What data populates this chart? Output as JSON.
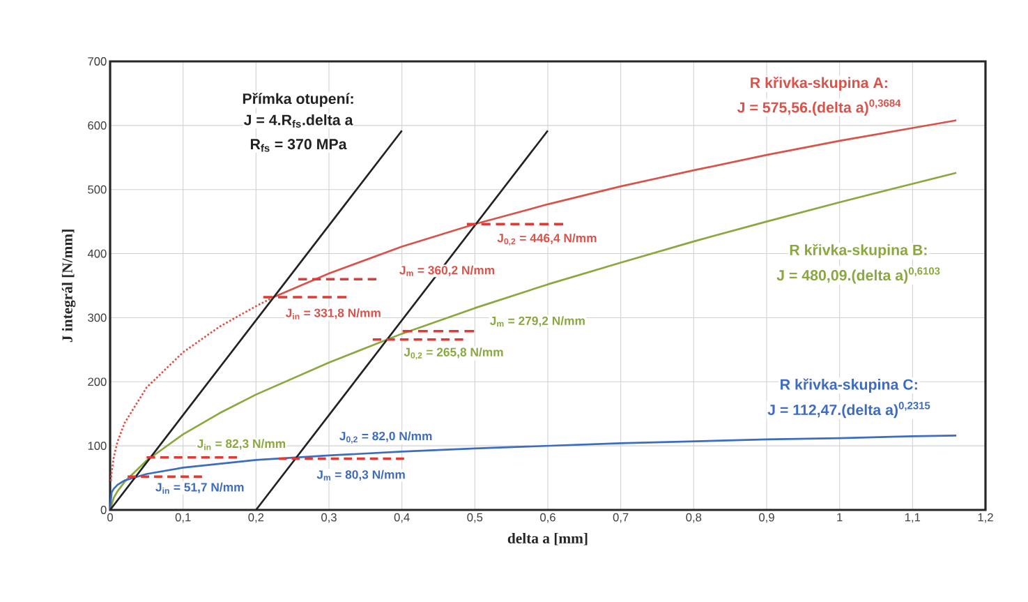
{
  "chart_data": {
    "type": "line",
    "xlabel": "delta a [mm]",
    "ylabel": "J integrál [N/mm]",
    "xlim": [
      0,
      1.2
    ],
    "ylim": [
      0,
      700
    ],
    "xticks": [
      0,
      {
        "value": 0.1,
        "label": "0,1"
      },
      {
        "value": 0.2,
        "label": "0,2"
      },
      {
        "value": 0.3,
        "label": "0,3"
      },
      {
        "value": 0.4,
        "label": "0,4"
      },
      {
        "value": 0.5,
        "label": "0,5"
      },
      {
        "value": 0.6,
        "label": "0,6"
      },
      {
        "value": 0.7,
        "label": "0,7"
      },
      {
        "value": 0.8,
        "label": "0,8"
      },
      {
        "value": 0.9,
        "label": "0,9"
      },
      1,
      {
        "value": 1.1,
        "label": "1,1"
      },
      {
        "value": 1.2,
        "label": "1,2"
      }
    ],
    "yticks": [
      0,
      100,
      200,
      300,
      400,
      500,
      600,
      700
    ],
    "grid": true,
    "series": [
      {
        "color": "#d9534a",
        "line_style": "dotted",
        "x": [
          0.001,
          0.002,
          0.005,
          0.01,
          0.02,
          0.05,
          0.1,
          0.15,
          0.2,
          0.224
        ],
        "values": [
          45,
          58,
          82,
          106,
          136,
          191,
          246,
          286,
          318,
          332
        ]
      },
      {
        "name": "R křivka-skupina A:",
        "color": "#d9534a",
        "line_style": "solid",
        "x": [
          0.224,
          0.3,
          0.4,
          0.5,
          0.6,
          0.7,
          0.8,
          0.9,
          1.0,
          1.1,
          1.16
        ],
        "values": [
          332,
          369,
          411,
          446,
          477,
          505,
          530,
          554,
          576,
          596,
          608
        ]
      },
      {
        "name": "R křivka-skupina B:",
        "color": "#8aa83e",
        "line_style": "solid",
        "x": [
          0,
          0.005,
          0.01,
          0.02,
          0.05,
          0.1,
          0.15,
          0.2,
          0.3,
          0.4,
          0.5,
          0.6,
          0.7,
          0.8,
          0.9,
          1.0,
          1.1,
          1.16
        ],
        "values": [
          0,
          19,
          29,
          44,
          77,
          118,
          151,
          180,
          230,
          275,
          315,
          352,
          386,
          419,
          450,
          480,
          509,
          526
        ]
      },
      {
        "name": "R křivka-skupina C:",
        "color": "#3d6cc0",
        "line_style": "solid",
        "x": [
          0,
          0.002,
          0.005,
          0.01,
          0.02,
          0.05,
          0.1,
          0.2,
          0.3,
          0.4,
          0.5,
          0.6,
          0.7,
          0.8,
          0.9,
          1.0,
          1.1,
          1.16
        ],
        "values": [
          0,
          27,
          33,
          39,
          46,
          56,
          66,
          78,
          85,
          91,
          96,
          100,
          104,
          107,
          110,
          112,
          115,
          116
        ]
      },
      {
        "name": "Přímka otupení:",
        "color": "#222222",
        "line_style": "solid",
        "x": [
          0,
          0.4
        ],
        "values": [
          0,
          592
        ]
      },
      {
        "color": "#222222",
        "line_style": "solid",
        "x": [
          0.2,
          0.6
        ],
        "values": [
          0,
          592
        ]
      },
      {
        "color": "#e03a36",
        "line_style": "dashed",
        "x": [
          0.489,
          0.621
        ],
        "values": [
          446,
          446
        ]
      },
      {
        "color": "#e03a36",
        "line_style": "dashed",
        "x": [
          0.258,
          0.365
        ],
        "values": [
          360,
          360
        ]
      },
      {
        "color": "#e03a36",
        "line_style": "dashed",
        "x": [
          0.21,
          0.324
        ],
        "values": [
          332,
          332
        ]
      },
      {
        "color": "#e03a36",
        "line_style": "dashed",
        "x": [
          0.401,
          0.499
        ],
        "values": [
          279,
          279
        ]
      },
      {
        "color": "#e03a36",
        "line_style": "dashed",
        "x": [
          0.36,
          0.484
        ],
        "values": [
          266,
          266
        ]
      },
      {
        "color": "#e03a36",
        "line_style": "dashed",
        "x": [
          0.05,
          0.174
        ],
        "values": [
          82,
          82
        ]
      },
      {
        "color": "#e03a36",
        "line_style": "dashed",
        "x": [
          0.231,
          0.403
        ],
        "values": [
          80,
          80
        ]
      },
      {
        "color": "#e03a36",
        "line_style": "dashed",
        "x": [
          0.024,
          0.126
        ],
        "values": [
          52,
          52
        ]
      }
    ],
    "annotations": [
      "J$_{0,2}$ = 446,4 N/mm",
      "J$_{m}$ = 360,2 N/mm",
      "J$_{in}$ = 331,8 N/mm",
      "J$_{m}$ = 279,2 N/mm",
      "J$_{0,2}$ = 265,8 N/mm",
      "J$_{in}$ = 82,3 N/mm",
      "J$_{0,2}$ = 82,0 N/mm",
      "J$_{m}$ = 80,3 N/mm",
      "J$_{in}$ = 51,7 N/mm",
      "J = 575,56.(delta a)$^{0,3684}$",
      "J = 480,09.(delta a)$^{0,6103}$",
      "J = 112,47.(delta a)$^{0,2315}$",
      "J = 4.R$_{fs}$.delta a",
      "R$_{fs}$ = 370 MPa"
    ]
  }
}
